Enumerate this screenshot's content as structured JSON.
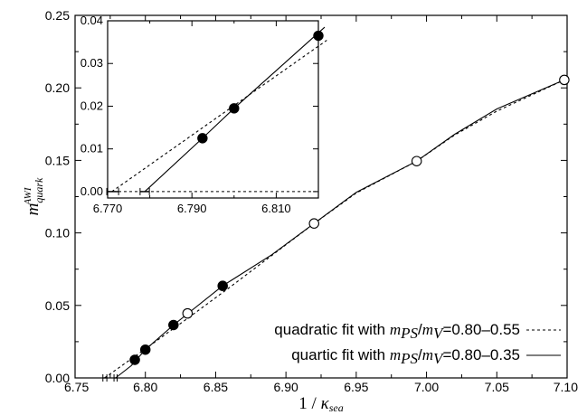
{
  "chart_data": {
    "type": "scatter",
    "xlabel": "1 / κ_sea",
    "ylabel": "m_quark^AWI",
    "xlim": [
      6.75,
      7.1
    ],
    "ylim": [
      0,
      0.25
    ],
    "x_ticks": [
      "6.75",
      "6.80",
      "6.85",
      "6.90",
      "6.95",
      "7.00",
      "7.05",
      "7.10"
    ],
    "y_ticks": [
      "0.00",
      "0.05",
      "0.10",
      "0.15",
      "0.20",
      "0.25"
    ],
    "series": [
      {
        "marker": "filled-circle",
        "x": [
          6.7925,
          6.8,
          6.82,
          6.855
        ],
        "y": [
          0.0125,
          0.0195,
          0.0365,
          0.0635
        ]
      },
      {
        "marker": "open-circle",
        "x": [
          6.83,
          6.92,
          6.993,
          7.098
        ],
        "y": [
          0.0445,
          0.1065,
          0.1495,
          0.2055
        ]
      }
    ],
    "fits": [
      {
        "name": "quadratic fit",
        "label_prefix": "quadratic fit with ",
        "label_ratio": "mPS/mV",
        "label_range": "=0.80–0.55",
        "style": "dashed",
        "x": [
          6.771,
          6.8,
          6.83,
          6.86,
          6.89,
          6.92,
          6.95,
          6.993,
          7.02,
          7.05,
          7.098
        ],
        "y": [
          0,
          0.02,
          0.041,
          0.0625,
          0.0845,
          0.1065,
          0.1275,
          0.1495,
          0.1675,
          0.184,
          0.2055
        ]
      },
      {
        "name": "quartic fit",
        "label_prefix": "quartic fit with ",
        "label_ratio": "mPS/mV",
        "label_range": "=0.80–0.35",
        "style": "solid",
        "x": [
          6.7788,
          6.79,
          6.8,
          6.82,
          6.855,
          6.89,
          6.92,
          6.95,
          6.993,
          7.02,
          7.05,
          7.098
        ],
        "y": [
          0,
          0.0085,
          0.0195,
          0.0365,
          0.0635,
          0.085,
          0.1065,
          0.128,
          0.1495,
          0.168,
          0.1855,
          0.2055
        ]
      }
    ],
    "x_intercept_errors": [
      {
        "x": 6.7712,
        "err": 0.0014
      },
      {
        "x": 6.7788,
        "err": 0.0011
      }
    ],
    "legend": {
      "placement": "bottom-right"
    },
    "inset": {
      "xlim": [
        6.77,
        6.82
      ],
      "ylim": [
        -0.0015,
        0.04
      ],
      "x_ticks": [
        "6.770",
        "6.790",
        "6.810"
      ],
      "y_ticks": [
        "0.00",
        "0.01",
        "0.02",
        "0.03",
        "0.04"
      ],
      "points": {
        "x": [
          6.7925,
          6.8,
          6.82
        ],
        "y": [
          0.0125,
          0.0195,
          0.0365
        ]
      }
    }
  }
}
